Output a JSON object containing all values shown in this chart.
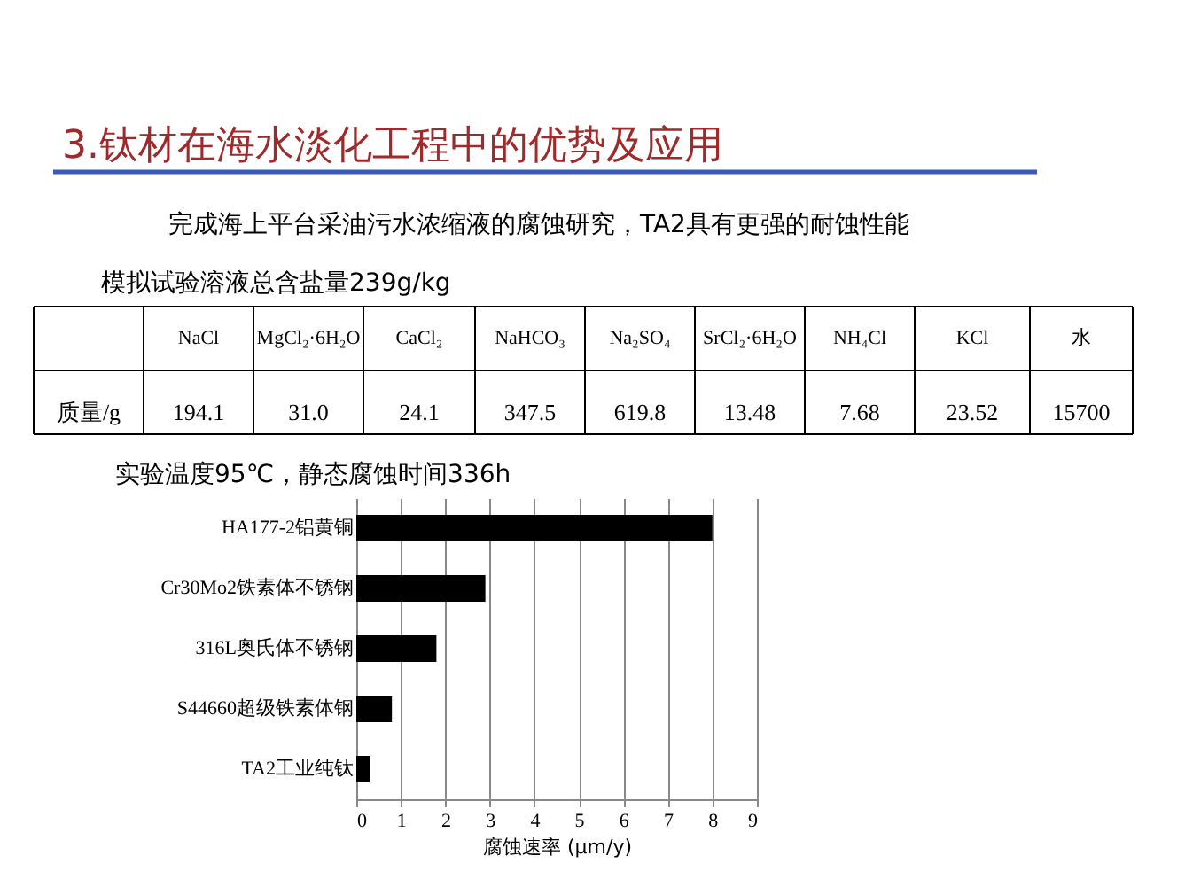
{
  "chart_data": {
    "type": "bar",
    "orientation": "horizontal",
    "title": "3.钛材在海水淡化工程中的优势及应用",
    "subtitle": "完成海上平台采油污水浓缩液的腐蚀研究，TA2具有更强的耐蚀性能",
    "annotations": [
      "模拟试验溶液总含盐量239g/kg",
      "NaCl",
      "MgCl₂·6H₂O",
      "CaCl₂",
      "NaHCO₃",
      "Na₂SO₄",
      "SrCl₂·6H₂O",
      "NH₄Cl",
      "KCl",
      "水",
      "质量/g",
      "194.1",
      "31.0",
      "24.1",
      "347.5",
      "619.8",
      "13.48",
      "7.68",
      "23.52",
      "15700",
      "实验温度95℃，静态腐蚀时间336h"
    ],
    "categories": [
      "HA177-2铝黄铜",
      "Cr30Mo2铁素体不锈钢",
      "316L奥氏体不锈钢",
      "S44660超级铁素体钢",
      "TA2工业纯钛"
    ],
    "values": [
      8.0,
      2.9,
      1.8,
      0.8,
      0.3
    ],
    "color": "#000000",
    "xlabel": "腐蚀速率 (μm/y)",
    "xlim": [
      0,
      9
    ],
    "xticks": [
      0,
      1,
      2,
      3,
      4,
      5,
      6,
      7,
      8,
      9
    ],
    "grid": "x"
  }
}
